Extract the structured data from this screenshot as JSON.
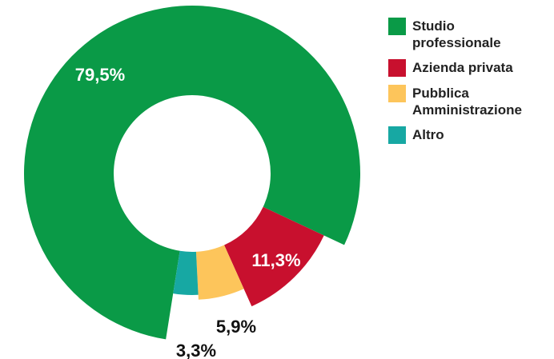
{
  "chart_data": {
    "type": "donut",
    "categories": [
      "Studio professionale",
      "Azienda privata",
      "Pubblica Amministrazione",
      "Altro"
    ],
    "values": [
      79.5,
      11.3,
      5.9,
      3.3
    ],
    "value_labels": [
      "79,5%",
      "11,3%",
      "5,9%",
      "3,3%"
    ],
    "colors": [
      "#0a9a47",
      "#c8102e",
      "#fdc55b",
      "#17a8a3"
    ],
    "legend": "right"
  }
}
